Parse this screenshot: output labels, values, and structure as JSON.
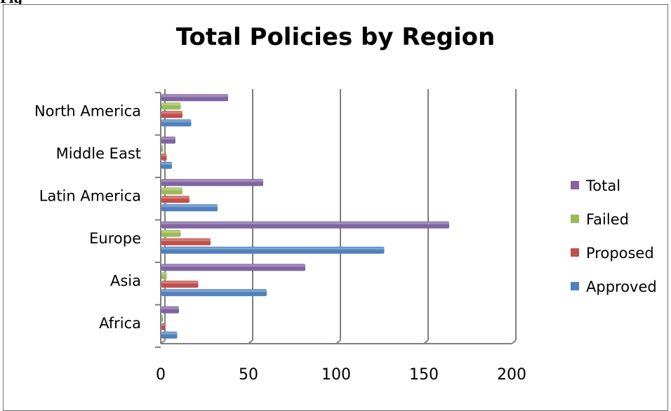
{
  "corner_label": "Fig",
  "chart_data": {
    "type": "bar",
    "orientation": "horizontal",
    "title": "Total Policies by Region",
    "categories": [
      "Africa",
      "Asia",
      "Europe",
      "Latin America",
      "Middle East",
      "North America"
    ],
    "series": [
      {
        "name": "Approved",
        "color": "#4f81bd",
        "values": [
          9,
          60,
          127,
          32,
          6,
          17
        ]
      },
      {
        "name": "Proposed",
        "color": "#c0504d",
        "values": [
          2,
          21,
          28,
          16,
          3,
          12
        ]
      },
      {
        "name": "Failed",
        "color": "#9bbb59",
        "values": [
          1,
          3,
          11,
          12,
          1,
          11
        ]
      },
      {
        "name": "Total",
        "color": "#8064a2",
        "values": [
          10,
          82,
          164,
          58,
          8,
          38
        ]
      }
    ],
    "legend_order": [
      "Total",
      "Failed",
      "Proposed",
      "Approved"
    ],
    "legend_position": "right",
    "xlim": [
      0,
      200
    ],
    "xticks": [
      "0",
      "50",
      "100",
      "150",
      "200"
    ],
    "grid": true
  }
}
